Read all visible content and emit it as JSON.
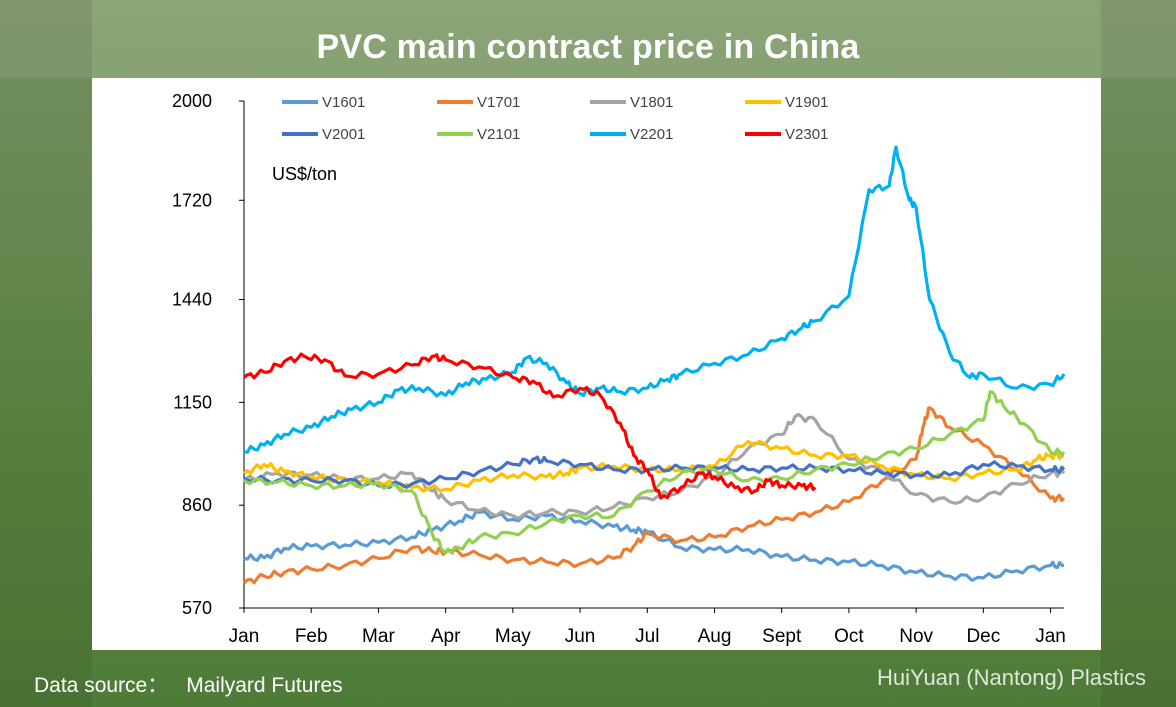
{
  "header": {
    "title": "PVC main contract price in China"
  },
  "footer": {
    "source_label": "Data source：",
    "source_value": "Mailyard Futures",
    "brand": "HuiYuan (Nantong) Plastics"
  },
  "chart_data": {
    "type": "line",
    "title": "PVC main contract price in China",
    "unit_label": "US$/ton",
    "xlabel": "",
    "ylabel": "US$/ton",
    "ylim": [
      570,
      2000
    ],
    "yticks": [
      570,
      860,
      1150,
      1440,
      1720,
      2000
    ],
    "x_range": [
      0,
      12.2
    ],
    "categories": [
      "Jan",
      "Feb",
      "Mar",
      "Apr",
      "May",
      "Jun",
      "Jul",
      "Aug",
      "Sept",
      "Oct",
      "Nov",
      "Dec",
      "Jan"
    ],
    "legend_position": "top",
    "series": [
      {
        "name": "V1601",
        "color": "#5b9bd5",
        "points": [
          [
            0,
            710
          ],
          [
            0.3,
            712
          ],
          [
            0.6,
            738
          ],
          [
            1,
            745
          ],
          [
            1.5,
            748
          ],
          [
            2,
            755
          ],
          [
            2.5,
            770
          ],
          [
            2.8,
            790
          ],
          [
            3.2,
            815
          ],
          [
            3.5,
            840
          ],
          [
            4,
            820
          ],
          [
            4.5,
            830
          ],
          [
            5,
            815
          ],
          [
            5.5,
            800
          ],
          [
            5.8,
            790
          ],
          [
            6,
            785
          ],
          [
            6.5,
            740
          ],
          [
            7,
            735
          ],
          [
            7.5,
            735
          ],
          [
            8,
            715
          ],
          [
            8.5,
            705
          ],
          [
            9,
            700
          ],
          [
            9.5,
            690
          ],
          [
            10,
            670
          ],
          [
            10.5,
            660
          ],
          [
            11,
            655
          ],
          [
            11.5,
            675
          ],
          [
            12,
            690
          ],
          [
            12.2,
            690
          ]
        ]
      },
      {
        "name": "V1701",
        "color": "#ed7d31",
        "points": [
          [
            0,
            640
          ],
          [
            0.3,
            660
          ],
          [
            0.6,
            670
          ],
          [
            1,
            680
          ],
          [
            1.5,
            690
          ],
          [
            2,
            710
          ],
          [
            2.5,
            740
          ],
          [
            2.8,
            730
          ],
          [
            3,
            730
          ],
          [
            3.5,
            720
          ],
          [
            4,
            705
          ],
          [
            4.5,
            700
          ],
          [
            5,
            695
          ],
          [
            5.5,
            710
          ],
          [
            5.8,
            745
          ],
          [
            6,
            780
          ],
          [
            6.5,
            760
          ],
          [
            7,
            770
          ],
          [
            7.5,
            800
          ],
          [
            8,
            820
          ],
          [
            8.5,
            840
          ],
          [
            9,
            870
          ],
          [
            9.5,
            930
          ],
          [
            10,
            990
          ],
          [
            10.1,
            1080
          ],
          [
            10.2,
            1135
          ],
          [
            10.5,
            1080
          ],
          [
            11,
            1030
          ],
          [
            11.5,
            960
          ],
          [
            12,
            880
          ],
          [
            12.2,
            880
          ]
        ]
      },
      {
        "name": "V1801",
        "color": "#a5a5a5",
        "points": [
          [
            0,
            930
          ],
          [
            0.5,
            950
          ],
          [
            1,
            945
          ],
          [
            1.5,
            935
          ],
          [
            2,
            935
          ],
          [
            2.5,
            950
          ],
          [
            2.8,
            900
          ],
          [
            3,
            875
          ],
          [
            3.5,
            845
          ],
          [
            4,
            830
          ],
          [
            4.5,
            840
          ],
          [
            5,
            840
          ],
          [
            5.5,
            855
          ],
          [
            6,
            880
          ],
          [
            6.5,
            900
          ],
          [
            7,
            940
          ],
          [
            7.5,
            1020
          ],
          [
            8,
            1060
          ],
          [
            8.2,
            1110
          ],
          [
            8.5,
            1100
          ],
          [
            9,
            990
          ],
          [
            9.5,
            955
          ],
          [
            10,
            890
          ],
          [
            10.5,
            870
          ],
          [
            11,
            880
          ],
          [
            11.5,
            920
          ],
          [
            12,
            950
          ],
          [
            12.2,
            950
          ]
        ]
      },
      {
        "name": "V1901",
        "color": "#ffc000",
        "points": [
          [
            0,
            950
          ],
          [
            0.3,
            975
          ],
          [
            0.6,
            955
          ],
          [
            1,
            940
          ],
          [
            1.5,
            930
          ],
          [
            2,
            925
          ],
          [
            2.5,
            910
          ],
          [
            3,
            905
          ],
          [
            3.5,
            930
          ],
          [
            4,
            945
          ],
          [
            4.5,
            940
          ],
          [
            4.8,
            950
          ],
          [
            5,
            965
          ],
          [
            5.5,
            970
          ],
          [
            6,
            960
          ],
          [
            6.5,
            960
          ],
          [
            7,
            970
          ],
          [
            7.5,
            1040
          ],
          [
            8,
            1020
          ],
          [
            8.5,
            1000
          ],
          [
            9,
            1000
          ],
          [
            9.5,
            970
          ],
          [
            10,
            945
          ],
          [
            10.5,
            935
          ],
          [
            11,
            950
          ],
          [
            11.5,
            960
          ],
          [
            11.8,
            990
          ],
          [
            12,
            1000
          ],
          [
            12.2,
            1000
          ]
        ]
      },
      {
        "name": "V2001",
        "color": "#4472c4",
        "points": [
          [
            0,
            935
          ],
          [
            0.5,
            930
          ],
          [
            1,
            930
          ],
          [
            1.5,
            930
          ],
          [
            2,
            915
          ],
          [
            2.5,
            920
          ],
          [
            3,
            935
          ],
          [
            3.5,
            955
          ],
          [
            4,
            975
          ],
          [
            4.3,
            990
          ],
          [
            4.5,
            985
          ],
          [
            5,
            975
          ],
          [
            5.5,
            960
          ],
          [
            6,
            960
          ],
          [
            6.5,
            965
          ],
          [
            7,
            965
          ],
          [
            7.5,
            960
          ],
          [
            8,
            965
          ],
          [
            8.5,
            965
          ],
          [
            9,
            960
          ],
          [
            9.5,
            950
          ],
          [
            10,
            945
          ],
          [
            10.5,
            945
          ],
          [
            11,
            975
          ],
          [
            11.5,
            970
          ],
          [
            12,
            960
          ],
          [
            12.2,
            960
          ]
        ]
      },
      {
        "name": "V2101",
        "color": "#92d050",
        "points": [
          [
            0,
            930
          ],
          [
            0.5,
            925
          ],
          [
            1,
            915
          ],
          [
            1.5,
            915
          ],
          [
            2,
            920
          ],
          [
            2.5,
            900
          ],
          [
            2.8,
            780
          ],
          [
            3,
            725
          ],
          [
            3.2,
            740
          ],
          [
            3.5,
            770
          ],
          [
            4,
            780
          ],
          [
            4.5,
            810
          ],
          [
            5,
            830
          ],
          [
            5.5,
            830
          ],
          [
            6,
            900
          ],
          [
            6.5,
            950
          ],
          [
            7,
            960
          ],
          [
            7.5,
            930
          ],
          [
            8,
            935
          ],
          [
            8.5,
            960
          ],
          [
            9,
            975
          ],
          [
            9.5,
            1000
          ],
          [
            10,
            1020
          ],
          [
            10.5,
            1060
          ],
          [
            11,
            1100
          ],
          [
            11.1,
            1180
          ],
          [
            11.3,
            1140
          ],
          [
            11.6,
            1090
          ],
          [
            12,
            1010
          ],
          [
            12.2,
            1010
          ]
        ]
      },
      {
        "name": "V2201",
        "color": "#00b0f0",
        "points": [
          [
            0,
            1010
          ],
          [
            0.3,
            1030
          ],
          [
            0.6,
            1060
          ],
          [
            1,
            1080
          ],
          [
            1.3,
            1110
          ],
          [
            1.6,
            1130
          ],
          [
            2,
            1150
          ],
          [
            2.3,
            1185
          ],
          [
            2.6,
            1190
          ],
          [
            3,
            1170
          ],
          [
            3.3,
            1205
          ],
          [
            3.6,
            1215
          ],
          [
            4,
            1235
          ],
          [
            4.2,
            1275
          ],
          [
            4.5,
            1260
          ],
          [
            4.8,
            1205
          ],
          [
            5,
            1175
          ],
          [
            5.3,
            1190
          ],
          [
            5.6,
            1180
          ],
          [
            6,
            1190
          ],
          [
            6.3,
            1215
          ],
          [
            6.5,
            1230
          ],
          [
            7,
            1260
          ],
          [
            7.5,
            1285
          ],
          [
            8,
            1330
          ],
          [
            8.3,
            1360
          ],
          [
            8.5,
            1380
          ],
          [
            9,
            1450
          ],
          [
            9.3,
            1750
          ],
          [
            9.6,
            1760
          ],
          [
            9.7,
            1870
          ],
          [
            9.9,
            1720
          ],
          [
            10,
            1700
          ],
          [
            10.2,
            1440
          ],
          [
            10.5,
            1290
          ],
          [
            10.8,
            1220
          ],
          [
            11,
            1230
          ],
          [
            11.5,
            1190
          ],
          [
            12,
            1200
          ],
          [
            12.2,
            1230
          ]
        ]
      },
      {
        "name": "V2301",
        "color": "#ff0000",
        "points": [
          [
            0,
            1220
          ],
          [
            0.3,
            1235
          ],
          [
            0.6,
            1265
          ],
          [
            0.9,
            1280
          ],
          [
            1.2,
            1270
          ],
          [
            1.5,
            1225
          ],
          [
            2,
            1230
          ],
          [
            2.5,
            1255
          ],
          [
            2.8,
            1280
          ],
          [
            3,
            1270
          ],
          [
            3.5,
            1250
          ],
          [
            4,
            1220
          ],
          [
            4.3,
            1210
          ],
          [
            4.6,
            1165
          ],
          [
            5,
            1190
          ],
          [
            5.3,
            1170
          ],
          [
            5.6,
            1090
          ],
          [
            5.8,
            1000
          ],
          [
            6,
            960
          ],
          [
            6.2,
            880
          ],
          [
            6.5,
            910
          ],
          [
            6.8,
            950
          ],
          [
            7,
            940
          ],
          [
            7.3,
            910
          ],
          [
            7.6,
            900
          ],
          [
            7.8,
            930
          ],
          [
            8,
            915
          ],
          [
            8.3,
            915
          ],
          [
            8.5,
            910
          ]
        ]
      }
    ]
  }
}
